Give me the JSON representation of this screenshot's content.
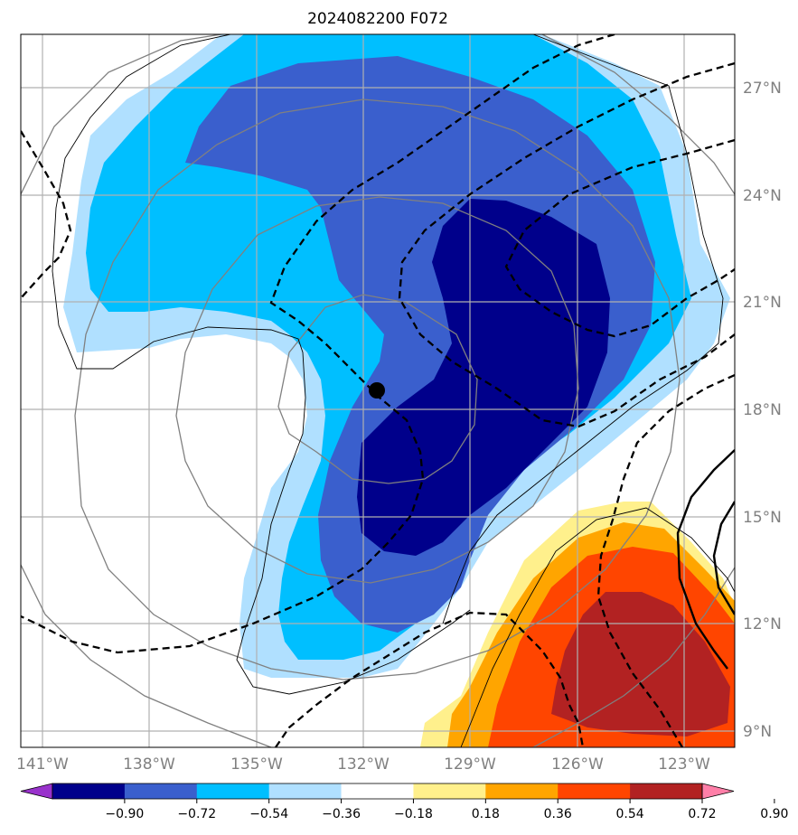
{
  "chart_data": {
    "type": "map",
    "title": "2024082200 F072",
    "projection": "orthographic-like regional map",
    "lon_ticks": [
      "141°W",
      "138°W",
      "135°W",
      "132°W",
      "129°W",
      "126°W",
      "123°W"
    ],
    "lat_ticks": [
      "9°N",
      "12°N",
      "15°N",
      "18°N",
      "21°N",
      "24°N",
      "27°N"
    ],
    "lon_range": [
      -141.5,
      -121.5
    ],
    "lat_range": [
      8.5,
      28.5
    ],
    "grid": true,
    "storm_center": {
      "lon": -131.7,
      "lat": 18.5
    },
    "colorbar": {
      "orientation": "horizontal",
      "extend": "both",
      "boundaries": [
        -0.9,
        -0.72,
        -0.54,
        -0.36,
        -0.18,
        0.18,
        0.36,
        0.54,
        0.72,
        0.9
      ],
      "labels": [
        "−0.90",
        "−0.72",
        "−0.54",
        "−0.36",
        "−0.18",
        "0.18",
        "0.36",
        "0.54",
        "0.72",
        "0.90"
      ],
      "colors": [
        "#9932cc",
        "#00008b",
        "#3a5fcd",
        "#00bfff",
        "#b0e0ff",
        "#ffffff",
        "#fff08c",
        "#ffa500",
        "#ff4500",
        "#b22222",
        "#ff7fa8"
      ]
    },
    "fill_levels": [
      {
        "range": "-0.36 to -0.18",
        "color": "#b0e0ff"
      },
      {
        "range": "-0.54 to -0.36",
        "color": "#00bfff"
      },
      {
        "range": "-0.72 to -0.54",
        "color": "#3a5fcd"
      },
      {
        "range": "-0.90 to -0.72",
        "color": "#00008b"
      },
      {
        "range": "0.18 to 0.36",
        "color": "#fff08c"
      },
      {
        "range": "0.36 to 0.54",
        "color": "#ffa500"
      },
      {
        "range": "0.54 to 0.72",
        "color": "#ff4500"
      },
      {
        "range": "0.72 to 0.90",
        "color": "#b22222"
      }
    ]
  }
}
